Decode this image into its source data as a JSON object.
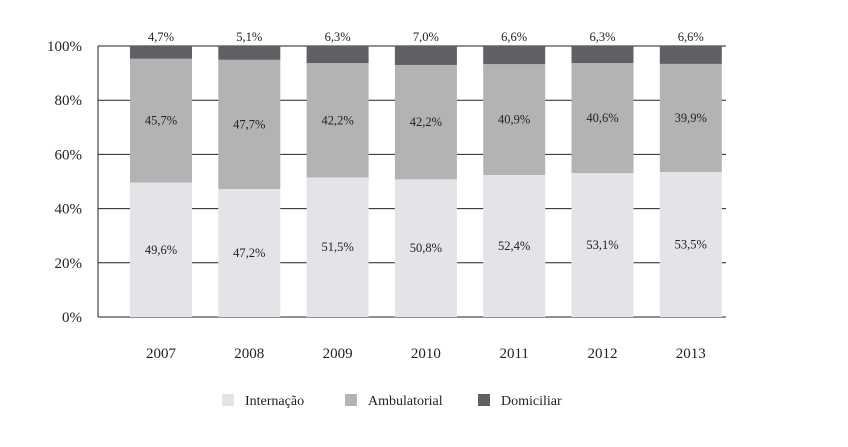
{
  "chart_data": {
    "type": "bar",
    "stacked": true,
    "categories": [
      "2007",
      "2008",
      "2009",
      "2010",
      "2011",
      "2012",
      "2013"
    ],
    "series": [
      {
        "name": "Internação",
        "values": [
          49.6,
          47.2,
          51.5,
          50.8,
          52.4,
          53.1,
          53.5
        ],
        "labels": [
          "49,6%",
          "47,2%",
          "51,5%",
          "50,8%",
          "52,4%",
          "53,1%",
          "53,5%"
        ],
        "color": "#e3e4e8"
      },
      {
        "name": "Ambulatorial",
        "values": [
          45.7,
          47.7,
          42.2,
          42.2,
          40.9,
          40.6,
          39.9
        ],
        "labels": [
          "45,7%",
          "47,7%",
          "42,2%",
          "42,2%",
          "40,9%",
          "40,6%",
          "39,9%"
        ],
        "color": "#b3b3b3"
      },
      {
        "name": "Domiciliar",
        "values": [
          4.7,
          5.1,
          6.3,
          7.0,
          6.6,
          6.3,
          6.6
        ],
        "labels": [
          "4,7%",
          "5,1%",
          "6,3%",
          "7,0%",
          "6,6%",
          "6,3%",
          "6,6%"
        ],
        "color": "#5f6063"
      }
    ],
    "yticks": [
      "0%",
      "20%",
      "40%",
      "60%",
      "80%",
      "100%"
    ],
    "ylim": [
      0,
      100
    ],
    "grid": true,
    "legend": "bottom-center"
  }
}
